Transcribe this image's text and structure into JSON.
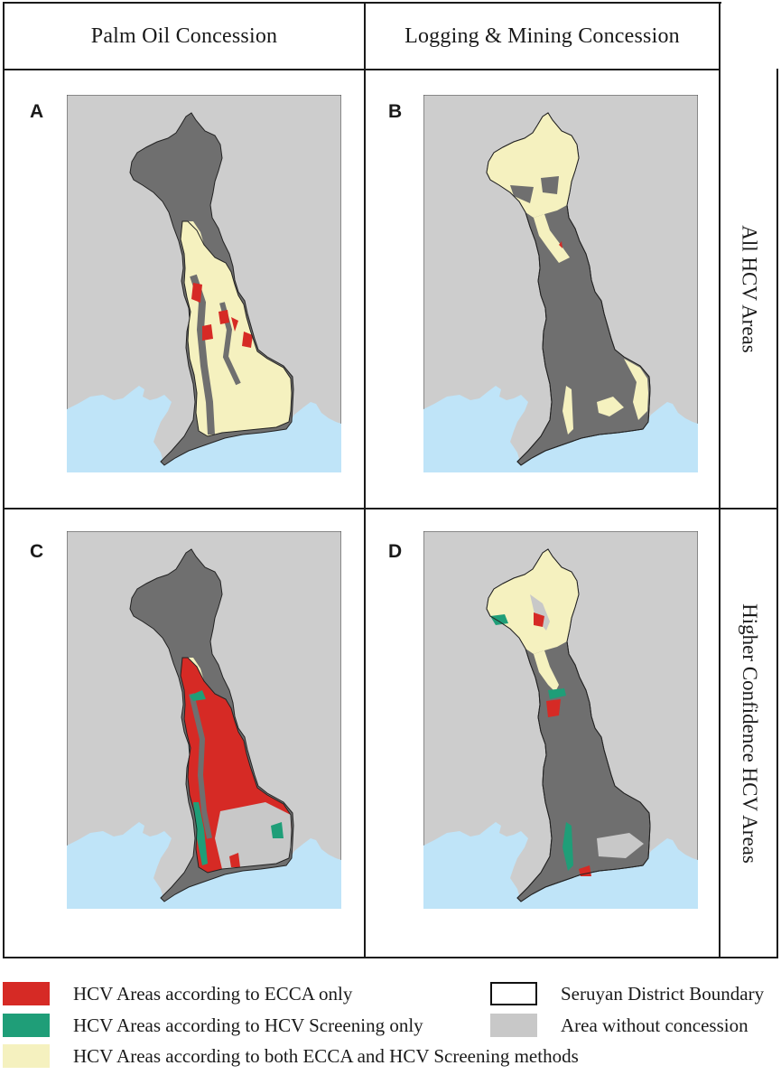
{
  "columns": {
    "palm_oil": "Palm Oil Concession",
    "logging_mining": "Logging & Mining Concession"
  },
  "rows": {
    "all_hcv": "All HCV Areas",
    "higher_confidence": "Higher Confidence HCV Areas"
  },
  "panels": {
    "a": {
      "letter": "A"
    },
    "b": {
      "letter": "B"
    },
    "c": {
      "letter": "C"
    },
    "d": {
      "letter": "D"
    }
  },
  "legend": {
    "ecca_only": {
      "label": "HCV Areas according to ECCA only",
      "color": "#d62a25"
    },
    "screening_only": {
      "label": "HCV Areas according to HCV Screening only",
      "color": "#1f9e78"
    },
    "both": {
      "label": "HCV Areas according to both ECCA and HCV Screening methods",
      "color": "#f5f1bf"
    },
    "boundary": {
      "label": "Seruyan District Boundary",
      "color": "#111111"
    },
    "no_concession": {
      "label": "Area without concession",
      "color": "#c8c8c8"
    }
  },
  "map_colors": {
    "land": "#cdcdcd",
    "sea": "#bfe4f8",
    "district": "#6f6f6f"
  }
}
